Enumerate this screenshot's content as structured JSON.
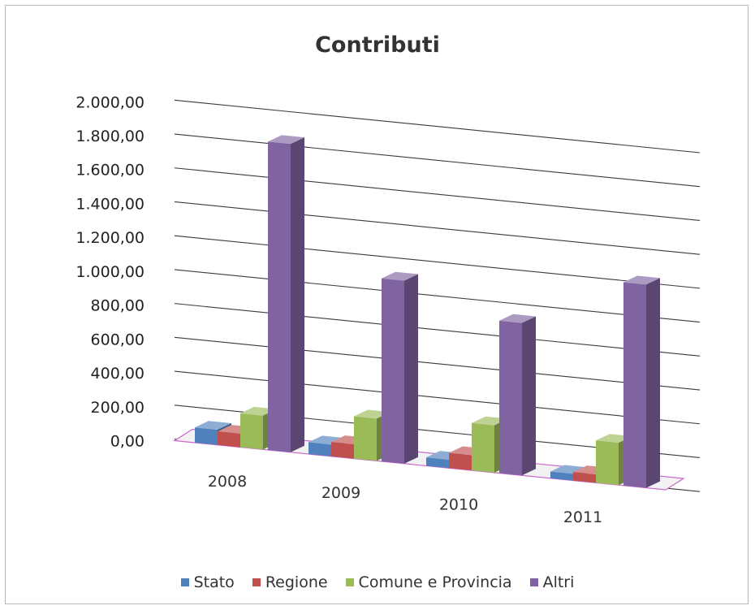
{
  "chart_data": {
    "type": "bar",
    "title": "Contributi",
    "categories": [
      "2008",
      "2009",
      "2010",
      "2011"
    ],
    "series": [
      {
        "name": "Stato",
        "color": "#4f81bd",
        "values": [
          90,
          70,
          50,
          40
        ]
      },
      {
        "name": "Regione",
        "color": "#c0504d",
        "values": [
          80,
          85,
          90,
          50
        ]
      },
      {
        "name": "Comune e Provincia",
        "color": "#9bbb59",
        "values": [
          200,
          250,
          280,
          250
        ]
      },
      {
        "name": "Altri",
        "color": "#8064a2",
        "values": [
          1820,
          1080,
          900,
          1200
        ]
      }
    ],
    "yticks": [
      "0,00",
      "200,00",
      "400,00",
      "600,00",
      "800,00",
      "1.000,00",
      "1.200,00",
      "1.400,00",
      "1.600,00",
      "1.800,00",
      "2.000,00"
    ],
    "ylim": [
      0,
      2000
    ],
    "grid": true,
    "legend_position": "bottom"
  }
}
